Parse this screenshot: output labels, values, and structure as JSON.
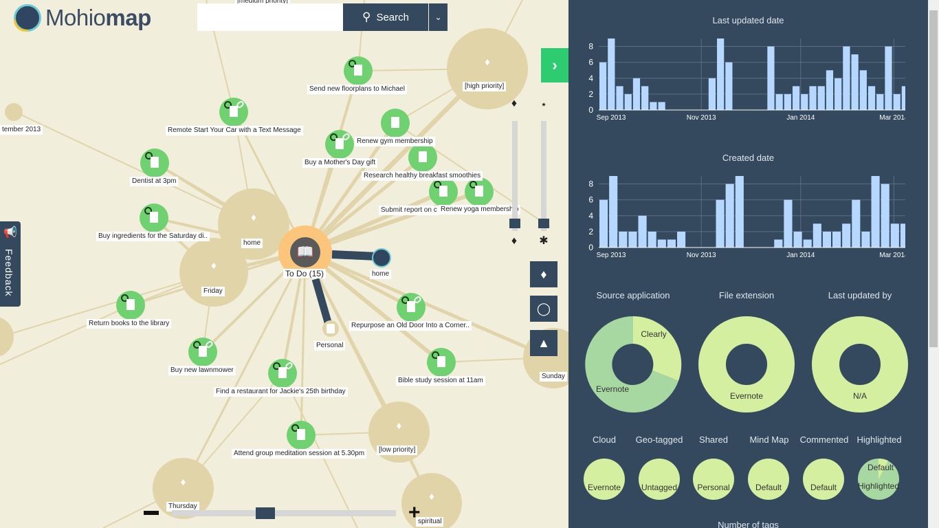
{
  "app": {
    "logo_text_light": "Mohio",
    "logo_text_bold": "map",
    "search_placeholder": "",
    "search_label": "Search",
    "feedback_label": "Feedback"
  },
  "map": {
    "center": {
      "label": "To Do (15)"
    },
    "tags": [
      {
        "label": "home"
      },
      {
        "label": "Friday"
      },
      {
        "label": "[high priority]"
      },
      {
        "label": "[low priority]"
      },
      {
        "label": "Thursday"
      },
      {
        "label": "spiritual"
      },
      {
        "label": "Sunday"
      },
      {
        "label": "tember 2013"
      },
      {
        "label": "[medium priority]"
      }
    ],
    "notes": [
      {
        "label": "Send new floorplans to Michael"
      },
      {
        "label": "Remote Start Your Car with a Text Message"
      },
      {
        "label": "Renew gym membership"
      },
      {
        "label": "Buy a Mother's Day gift"
      },
      {
        "label": "Research healthy breakfast smoothies"
      },
      {
        "label": "Submit report on c"
      },
      {
        "label": "Renew yoga membership"
      },
      {
        "label": "Dentist at 3pm"
      },
      {
        "label": "Buy ingredients for the Saturday di.."
      },
      {
        "label": "Return books to the library"
      },
      {
        "label": "Repurpose an Old Door Into a Corner.."
      },
      {
        "label": "Buy new lawnmower"
      },
      {
        "label": "Find a restaurant for Jackie's 25th birthday"
      },
      {
        "label": "Bible study session at 11am"
      },
      {
        "label": "Attend group meditation session at 5.30pm"
      }
    ],
    "links": [
      {
        "label": "home"
      },
      {
        "label": "Personal"
      }
    ]
  },
  "panel": {
    "last_updated_title": "Last updated date",
    "created_title": "Created date",
    "donuts": [
      {
        "title": "Source application",
        "labels": [
          "Clearly",
          "Evernote"
        ]
      },
      {
        "title": "File extension",
        "labels": [
          "Evernote"
        ]
      },
      {
        "title": "Last updated by",
        "labels": [
          "N/A"
        ]
      }
    ],
    "small_pies": [
      {
        "title": "Cloud",
        "labels": [
          "Evernote"
        ]
      },
      {
        "title": "Geo-tagged",
        "labels": [
          "Untagged"
        ]
      },
      {
        "title": "Shared",
        "labels": [
          "Personal"
        ]
      },
      {
        "title": "Mind Map",
        "labels": [
          "Default"
        ]
      },
      {
        "title": "Commented",
        "labels": [
          "Default"
        ]
      },
      {
        "title": "Highlighted",
        "labels": [
          "Default",
          "Highlighted"
        ]
      }
    ],
    "number_of_tags_title": "Number of tags"
  },
  "chart_data": [
    {
      "type": "bar",
      "title": "Last updated date",
      "x_ticks": [
        "Sep 2013",
        "Nov 2013",
        "Jan 2014",
        "Mar 2014"
      ],
      "y_ticks": [
        0,
        2,
        4,
        6,
        8
      ],
      "ylim": [
        0,
        9
      ],
      "grid": true,
      "values": [
        6,
        9,
        3,
        2,
        4,
        3,
        1,
        1,
        0,
        0,
        0,
        0,
        0,
        4,
        9,
        6,
        0,
        0,
        0,
        0,
        8,
        2,
        2,
        3,
        2,
        3,
        3,
        5,
        4,
        8,
        7,
        5,
        3,
        2,
        8,
        2,
        3
      ]
    },
    {
      "type": "bar",
      "title": "Created date",
      "x_ticks": [
        "Sep 2013",
        "Nov 2013",
        "Jan 2014",
        "Mar 2014"
      ],
      "y_ticks": [
        0,
        2,
        4,
        6,
        8
      ],
      "ylim": [
        0,
        9
      ],
      "grid": true,
      "values": [
        6,
        9,
        2,
        2,
        4,
        2,
        1,
        1,
        2,
        0,
        0,
        0,
        6,
        8,
        9,
        0,
        0,
        0,
        1,
        6,
        2,
        1,
        3,
        2,
        2,
        3,
        6,
        2,
        9,
        8,
        3,
        3
      ]
    },
    {
      "type": "pie",
      "title": "Source application",
      "labels": [
        "Clearly",
        "Evernote"
      ],
      "values": [
        0.2,
        0.8
      ]
    },
    {
      "type": "pie",
      "title": "File extension",
      "labels": [
        "Evernote"
      ],
      "values": [
        1.0
      ]
    },
    {
      "type": "pie",
      "title": "Last updated by",
      "labels": [
        "N/A"
      ],
      "values": [
        1.0
      ]
    },
    {
      "type": "pie",
      "title": "Highlighted",
      "labels": [
        "Default",
        "Highlighted"
      ],
      "values": [
        0.08,
        0.92
      ]
    }
  ],
  "colors": {
    "panel_bg": "#34495e",
    "accent_green": "#2ecc71",
    "bar": "#b6d7ff",
    "pie_light": "#d4efa0",
    "pie_mid": "#a8d8a2",
    "tag_bubble": "#e2d4a9",
    "note_green": "#6fd16f",
    "center_orange": "#fbc57c"
  }
}
